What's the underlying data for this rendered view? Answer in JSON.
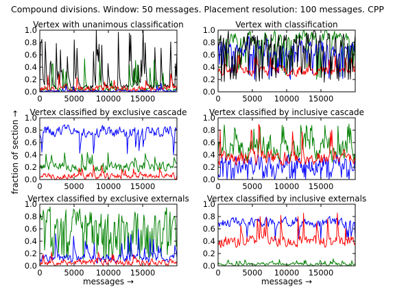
{
  "figure": {
    "suptitle": "Compound divisions. Window: 50 messages. Placement resolution: 100 messages. CPP",
    "ylabel": "fraction of section →",
    "xlabel": "messages →"
  },
  "colors": {
    "blue": "#0000ff",
    "green": "#008000",
    "red": "#ff0000",
    "black": "#000000"
  },
  "chart_data": [
    {
      "type": "line",
      "title": "Vertex with unanimous classification",
      "xlabel": "",
      "ylabel": "",
      "xlim": [
        0,
        20000
      ],
      "ylim": [
        0,
        1
      ],
      "xticks": [
        "0",
        "5000",
        "10000",
        "15000"
      ],
      "yticks": [
        "0.0",
        "0.2",
        "0.4",
        "0.6",
        "0.8",
        "1.0"
      ],
      "grid": false,
      "series": [
        {
          "color": "black",
          "base": 0.08,
          "var": 0.08,
          "spike_prob": 0.22,
          "spike_min": 0.3,
          "spike_max": 1.0,
          "seed": 11
        },
        {
          "color": "green",
          "base": 0.04,
          "var": 0.05,
          "spike_prob": 0.08,
          "spike_min": 0.15,
          "spike_max": 0.55,
          "seed": 12
        },
        {
          "color": "red",
          "base": 0.05,
          "var": 0.08,
          "spike_prob": 0.05,
          "spike_min": 0.15,
          "spike_max": 0.3,
          "seed": 13
        },
        {
          "color": "blue",
          "base": 0.01,
          "var": 0.03,
          "spike_prob": 0.03,
          "spike_min": 0.05,
          "spike_max": 0.15,
          "seed": 14
        }
      ]
    },
    {
      "type": "line",
      "title": "Vertex with classification",
      "xlabel": "",
      "ylabel": "",
      "xlim": [
        0,
        20000
      ],
      "ylim": [
        0,
        1
      ],
      "xticks": [
        "0",
        "5000",
        "10000",
        "15000"
      ],
      "yticks": [
        "0.0",
        "0.2",
        "0.4",
        "0.6",
        "0.8",
        "1.0"
      ],
      "grid": false,
      "series": [
        {
          "color": "green",
          "base": 0.9,
          "var": 0.15,
          "spike_prob": 0.15,
          "spike_min": 0.2,
          "spike_max": 0.5,
          "seed": 21
        },
        {
          "color": "blue",
          "base": 0.72,
          "var": 0.2,
          "spike_prob": 0.1,
          "spike_min": 0.2,
          "spike_max": 0.5,
          "seed": 22
        },
        {
          "color": "red",
          "base": 0.35,
          "var": 0.12,
          "spike_prob": 0.05,
          "spike_min": 0.5,
          "spike_max": 0.6,
          "seed": 23
        },
        {
          "color": "black",
          "base": 0.85,
          "var": 0.25,
          "spike_prob": 0.2,
          "spike_min": 0.15,
          "spike_max": 0.45,
          "seed": 24
        }
      ]
    },
    {
      "type": "line",
      "title": "Vertex classified by exclusive cascade",
      "xlabel": "",
      "ylabel": "",
      "xlim": [
        0,
        20000
      ],
      "ylim": [
        0,
        1
      ],
      "xticks": [
        "0",
        "5000",
        "10000",
        "15000"
      ],
      "yticks": [
        "0.0",
        "0.2",
        "0.4",
        "0.6",
        "0.8",
        "1.0"
      ],
      "grid": false,
      "series": [
        {
          "color": "blue",
          "base": 0.78,
          "var": 0.14,
          "spike_prob": 0.08,
          "spike_min": 0.4,
          "spike_max": 0.55,
          "seed": 31
        },
        {
          "color": "green",
          "base": 0.2,
          "var": 0.12,
          "spike_prob": 0.06,
          "spike_min": 0.35,
          "spike_max": 0.45,
          "seed": 32
        },
        {
          "color": "red",
          "base": 0.06,
          "var": 0.08,
          "spike_prob": 0.04,
          "spike_min": 0.15,
          "spike_max": 0.25,
          "seed": 33
        }
      ]
    },
    {
      "type": "line",
      "title": "Vertex classified by inclusive cascade",
      "xlabel": "",
      "ylabel": "",
      "xlim": [
        0,
        20000
      ],
      "ylim": [
        0,
        1
      ],
      "xticks": [
        "0",
        "5000",
        "10000",
        "15000"
      ],
      "yticks": [
        "0.0",
        "0.2",
        "0.4",
        "0.6",
        "0.8",
        "1.0"
      ],
      "grid": false,
      "series": [
        {
          "color": "green",
          "base": 0.5,
          "var": 0.3,
          "spike_prob": 0.1,
          "spike_min": 0.8,
          "spike_max": 0.9,
          "seed": 41
        },
        {
          "color": "blue",
          "base": 0.25,
          "var": 0.25,
          "spike_prob": 0.15,
          "spike_min": 0.0,
          "spike_max": 0.05,
          "seed": 42
        },
        {
          "color": "red",
          "base": 0.35,
          "var": 0.18,
          "spike_prob": 0.05,
          "spike_min": 0.75,
          "spike_max": 0.9,
          "seed": 43
        }
      ]
    },
    {
      "type": "line",
      "title": "Vertex classified by exclusive externals",
      "xlabel": "messages →",
      "ylabel": "",
      "xlim": [
        0,
        20000
      ],
      "ylim": [
        0,
        1
      ],
      "xticks": [
        "0",
        "5000",
        "10000",
        "15000"
      ],
      "yticks": [
        "0.0",
        "0.2",
        "0.4",
        "0.6",
        "0.8",
        "1.0"
      ],
      "grid": false,
      "series": [
        {
          "color": "green",
          "base": 0.8,
          "var": 0.25,
          "spike_prob": 0.3,
          "spike_min": 0.1,
          "spike_max": 0.4,
          "seed": 51
        },
        {
          "color": "blue",
          "base": 0.12,
          "var": 0.1,
          "spike_prob": 0.06,
          "spike_min": 0.25,
          "spike_max": 0.6,
          "seed": 52
        },
        {
          "color": "red",
          "base": 0.06,
          "var": 0.08,
          "spike_prob": 0.04,
          "spike_min": 0.15,
          "spike_max": 0.25,
          "seed": 53
        }
      ]
    },
    {
      "type": "line",
      "title": "Vertex classified by inclusive externals",
      "xlabel": "messages →",
      "ylabel": "",
      "xlim": [
        0,
        20000
      ],
      "ylim": [
        0,
        1
      ],
      "xticks": [
        "0",
        "5000",
        "10000",
        "15000"
      ],
      "yticks": [
        "0.0",
        "0.2",
        "0.4",
        "0.6",
        "0.8",
        "1.0"
      ],
      "grid": false,
      "series": [
        {
          "color": "blue",
          "base": 0.7,
          "var": 0.12,
          "spike_prob": 0.05,
          "spike_min": 0.4,
          "spike_max": 0.5,
          "seed": 61
        },
        {
          "color": "red",
          "base": 0.4,
          "var": 0.15,
          "spike_prob": 0.05,
          "spike_min": 0.6,
          "spike_max": 0.9,
          "seed": 62
        },
        {
          "color": "green",
          "base": 0.03,
          "var": 0.04,
          "spike_prob": 0.08,
          "spike_min": 0.06,
          "spike_max": 0.12,
          "seed": 63
        }
      ]
    }
  ]
}
